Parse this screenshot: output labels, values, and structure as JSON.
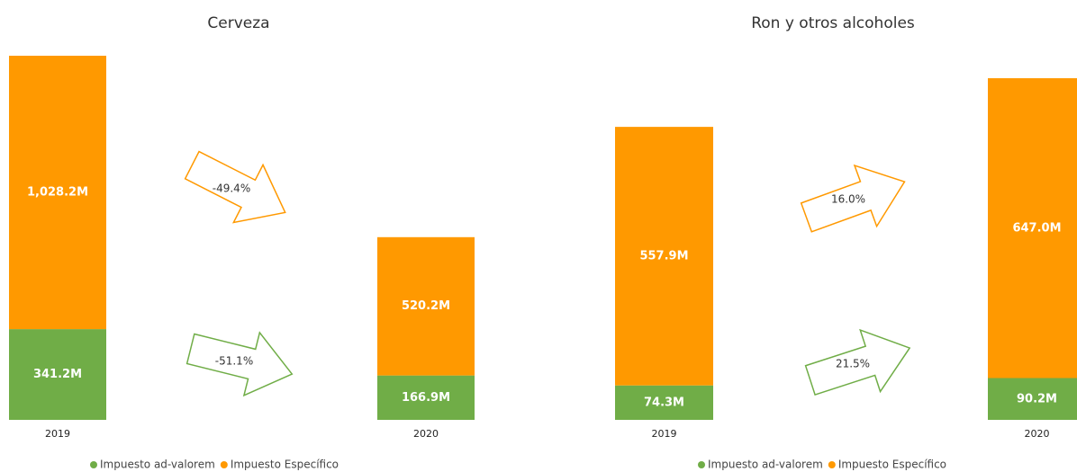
{
  "chart_data": [
    {
      "type": "bar",
      "stacked": true,
      "title": "Cerveza",
      "categories": [
        "2019",
        "2020"
      ],
      "series": [
        {
          "name": "Impuesto ad-valorem",
          "color": "#70ad47",
          "values": [
            341.2,
            166.9
          ],
          "value_labels": [
            "341.2M",
            "166.9M"
          ]
        },
        {
          "name": "Impuesto Específico",
          "color": "#ff9900",
          "values": [
            1028.2,
            520.2
          ],
          "value_labels": [
            "1,028.2M",
            "520.2M"
          ]
        }
      ],
      "annotations": [
        "-51.1%",
        "-49.4%"
      ]
    },
    {
      "type": "bar",
      "stacked": true,
      "title": "Ron y otros alcoholes",
      "categories": [
        "2019",
        "2020"
      ],
      "series": [
        {
          "name": "Impuesto ad-valorem",
          "color": "#70ad47",
          "values": [
            74.3,
            90.2
          ],
          "value_labels": [
            "74.3M",
            "90.2M"
          ]
        },
        {
          "name": "Impuesto Específico",
          "color": "#ff9900",
          "values": [
            557.9,
            647.0
          ],
          "value_labels": [
            "557.9M",
            "647.0M"
          ]
        }
      ],
      "annotations": [
        "21.5%",
        "16.0%"
      ]
    }
  ]
}
